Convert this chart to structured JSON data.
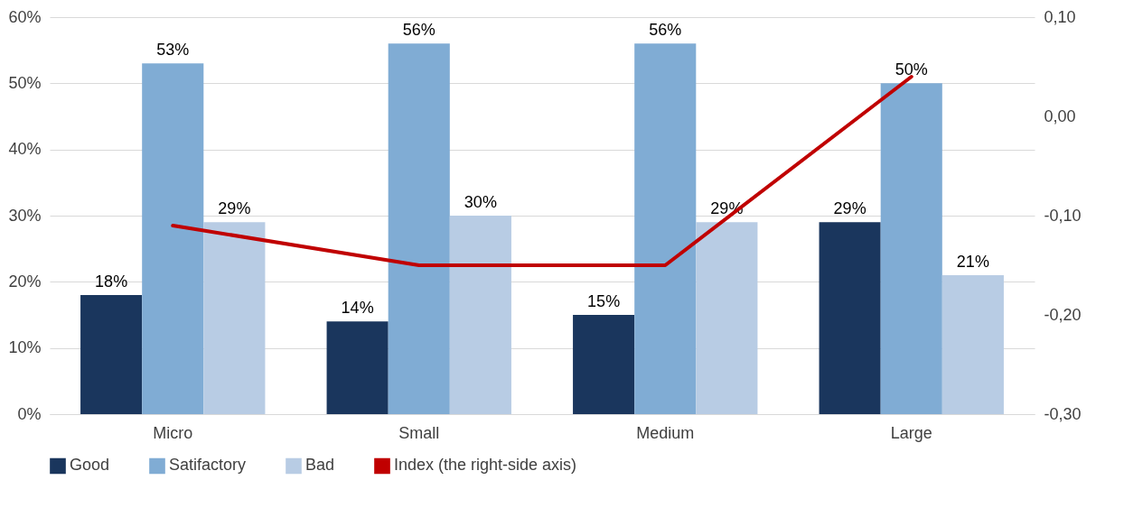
{
  "chart_data": {
    "type": "bar",
    "categories": [
      "Micro",
      "Small",
      "Medium",
      "Large"
    ],
    "series": [
      {
        "name": "Good",
        "color": "#1a365d",
        "values": [
          18,
          14,
          15,
          29
        ],
        "value_labels": [
          "18%",
          "14%",
          "15%",
          "29%"
        ]
      },
      {
        "name": "Satifactory",
        "color": "#80acd4",
        "values": [
          53,
          56,
          56,
          50
        ],
        "value_labels": [
          "53%",
          "56%",
          "56%",
          "50%"
        ]
      },
      {
        "name": "Bad",
        "color": "#b8cce4",
        "values": [
          29,
          30,
          29,
          21
        ],
        "value_labels": [
          "29%",
          "30%",
          "29%",
          "21%"
        ]
      },
      {
        "name": "Index (the right-side axis)",
        "type": "line",
        "axis": "y2",
        "color": "#c00000",
        "values": [
          -0.11,
          -0.15,
          -0.15,
          0.04
        ]
      }
    ],
    "ylim": [
      0,
      60
    ],
    "yticks": [
      {
        "value": 0,
        "label": "0%"
      },
      {
        "value": 10,
        "label": "10%"
      },
      {
        "value": 20,
        "label": "20%"
      },
      {
        "value": 30,
        "label": "30%"
      },
      {
        "value": 40,
        "label": "40%"
      },
      {
        "value": 50,
        "label": "50%"
      },
      {
        "value": 60,
        "label": "60%"
      }
    ],
    "y2lim": [
      -0.3,
      0.1
    ],
    "y2ticks": [
      {
        "value": -0.3,
        "label": "-0,30"
      },
      {
        "value": -0.2,
        "label": "-0,20"
      },
      {
        "value": -0.1,
        "label": "-0,10"
      },
      {
        "value": 0,
        "label": "0,00"
      },
      {
        "value": 0.1,
        "label": "0,10"
      }
    ],
    "grid": "y",
    "legend": "bottom",
    "line_style": "solid",
    "marker": "none"
  }
}
